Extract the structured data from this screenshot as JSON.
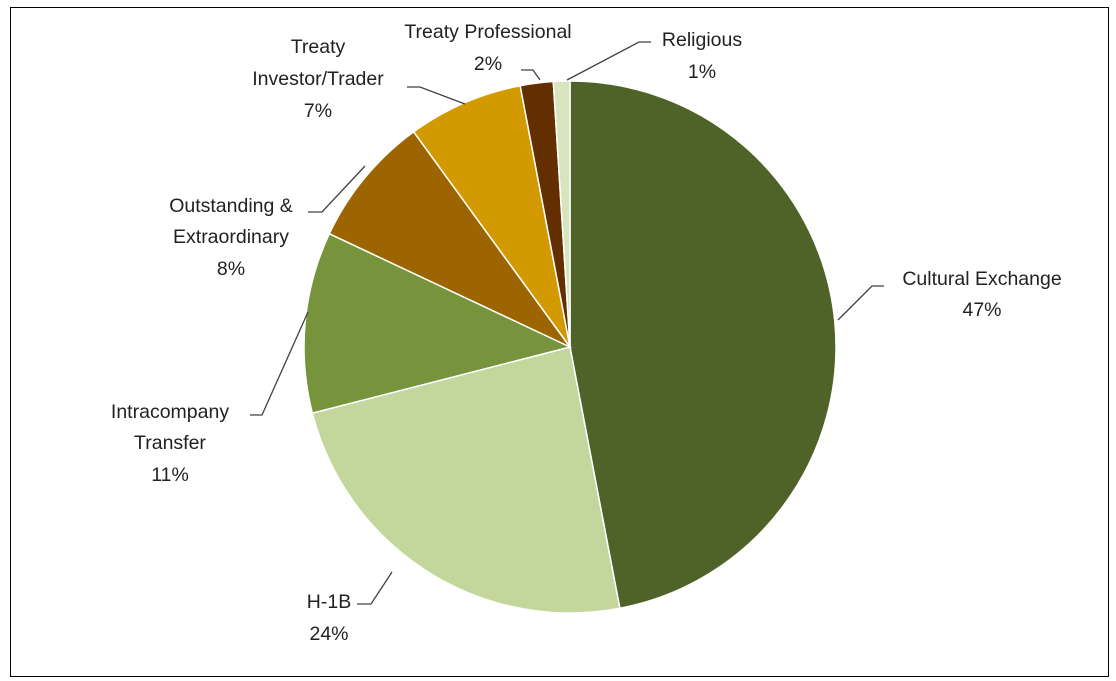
{
  "chart_data": {
    "type": "pie",
    "title": "",
    "slices": [
      {
        "name": "Cultural Exchange",
        "value": 47,
        "label_pct": "47%",
        "color": "#4f6228"
      },
      {
        "name": "H-1B",
        "value": 24,
        "label_pct": "24%",
        "color": "#c3d69b"
      },
      {
        "name": "Intracompany Transfer",
        "value": 11,
        "label_pct": "11%",
        "color": "#77933c"
      },
      {
        "name": "Outstanding & Extraordinary",
        "value": 8,
        "label_pct": "8%",
        "color": "#9c6500"
      },
      {
        "name": "Treaty Investor/Trader",
        "value": 7,
        "label_pct": "7%",
        "color": "#d29a00"
      },
      {
        "name": "Treaty Professional",
        "value": 2,
        "label_pct": "2%",
        "color": "#632f00"
      },
      {
        "name": "Religious",
        "value": 1,
        "label_pct": "1%",
        "color": "#d7e4bd"
      }
    ],
    "start_angle_deg": 0,
    "direction": "clockwise",
    "legend": "none",
    "data_labels": "category-and-percent-outside-with-leader-lines"
  }
}
